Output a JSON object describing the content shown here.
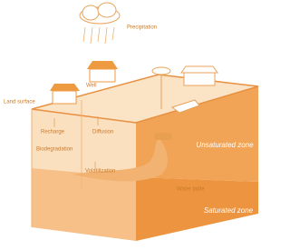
{
  "labels": {
    "precipitation": "Precipitation",
    "land_surface": "Land surface",
    "well": "Well",
    "recharge": "Recharge",
    "diffusion": "Diffusion",
    "biodegradation": "Biodegradation",
    "volatilization": "Volatilization",
    "unsaturated_zone": "Unsaturated zone",
    "water_table": "Water table",
    "saturated_zone": "Saturated zone"
  }
}
